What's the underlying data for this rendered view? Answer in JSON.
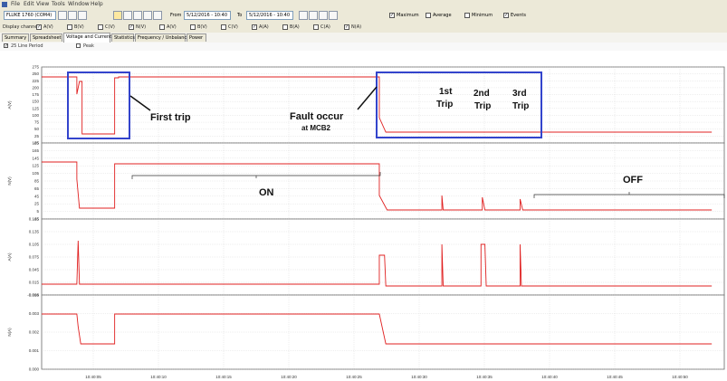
{
  "menu": [
    "File",
    "Edit",
    "View",
    "Tools",
    "Window",
    "Help"
  ],
  "toolbar": {
    "device": "FLUKE 1760 (COM4)",
    "from_label": "From",
    "from_value": "5/12/2016 - 10:40",
    "to_label": "To",
    "to_value": "5/12/2016 - 10:40",
    "checks": [
      {
        "label": "Maximum",
        "checked": true
      },
      {
        "label": "Average",
        "checked": false
      },
      {
        "label": "Minimum",
        "checked": false
      },
      {
        "label": "Events",
        "checked": true
      }
    ]
  },
  "display": {
    "label": "Display channels",
    "channels": [
      {
        "label": "A(V)",
        "checked": true
      },
      {
        "label": "B(V)",
        "checked": false
      },
      {
        "label": "C(V)",
        "checked": false
      },
      {
        "label": "N(V)",
        "checked": true
      },
      {
        "label": "A(V)",
        "checked": false
      },
      {
        "label": "B(V)",
        "checked": false
      },
      {
        "label": "C(V)",
        "checked": false
      },
      {
        "label": "A(A)",
        "checked": true
      },
      {
        "label": "B(A)",
        "checked": false
      },
      {
        "label": "C(A)",
        "checked": false
      },
      {
        "label": "N(A)",
        "checked": true
      }
    ]
  },
  "tabs": [
    {
      "label": "Summary",
      "active": false
    },
    {
      "label": "Spreadsheet",
      "active": false
    },
    {
      "label": "Voltage and Current",
      "active": true
    },
    {
      "label": "Statistics",
      "active": false
    },
    {
      "label": "Frequency / Unbalance",
      "active": false
    },
    {
      "label": "Power",
      "active": false
    }
  ],
  "options": [
    {
      "label": "25 Line Period",
      "checked": true
    },
    {
      "label": "Peak",
      "checked": false
    }
  ],
  "panels": [
    {
      "ylabel": "A(V)",
      "ticks": [
        "275",
        "250",
        "225",
        "200",
        "175",
        "150",
        "125",
        "100",
        "75",
        "50",
        "25",
        "-25"
      ]
    },
    {
      "ylabel": "N(V)",
      "ticks": [
        "185",
        "165",
        "145",
        "125",
        "105",
        "85",
        "65",
        "45",
        "25",
        "5",
        "-15"
      ]
    },
    {
      "ylabel": "A(A)",
      "ticks": [
        "0.165",
        "0.135",
        "0.105",
        "0.075",
        "0.045",
        "0.015",
        "-0.015"
      ]
    },
    {
      "ylabel": "N(A)",
      "ticks": [
        "0.004",
        "0.003",
        "0.002",
        "0.001",
        "0.000"
      ]
    }
  ],
  "xticks": [
    "10:40:05",
    "10:40:10",
    "10:40:15",
    "10:40:20",
    "10:40:25",
    "10:40:30",
    "10:40:35",
    "10:40:40",
    "10:40:45",
    "10:40:50"
  ],
  "annotations": {
    "first_trip": "First trip",
    "fault_occur": "Fault occur",
    "at_mcb2": "at MCB2",
    "trip1a": "1st",
    "trip1b": "Trip",
    "trip2a": "2nd",
    "trip2b": "Trip",
    "trip3a": "3rd",
    "trip3b": "Trip",
    "on": "ON",
    "off": "OFF"
  },
  "colors": {
    "trace": "#e02020",
    "box": "#3344cc",
    "grid": "#c8c8c8"
  }
}
